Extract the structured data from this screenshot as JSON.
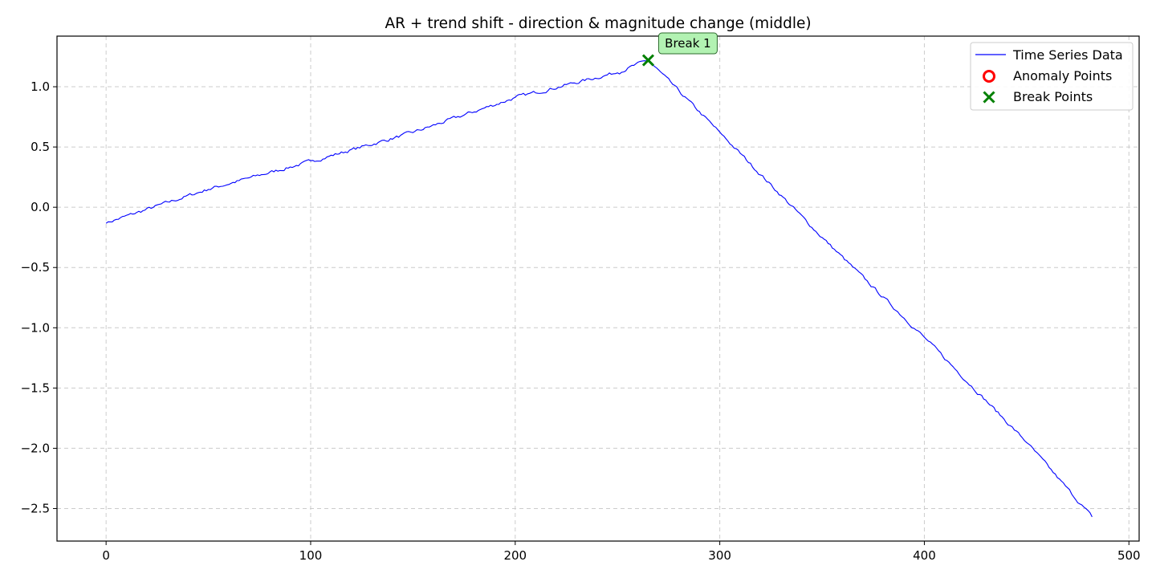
{
  "chart_data": {
    "type": "line",
    "title": "AR + trend shift - direction & magnitude change (middle)",
    "xlabel": "",
    "ylabel": "",
    "xlim": [
      -24,
      505
    ],
    "ylim": [
      -2.77,
      1.42
    ],
    "xticks": [
      0,
      100,
      200,
      300,
      400,
      500
    ],
    "yticks": [
      1.0,
      0.5,
      0.0,
      -0.5,
      -1.0,
      -1.5,
      -2.0,
      -2.5
    ],
    "xtick_labels": [
      "0",
      "100",
      "200",
      "300",
      "400",
      "500"
    ],
    "ytick_labels": [
      "1.0",
      "0.5",
      "0.0",
      "−0.5",
      "−1.0",
      "−1.5",
      "−2.0",
      "−2.5"
    ],
    "grid": true,
    "legend_position": "top-right",
    "series": [
      {
        "name": "Time Series Data",
        "color": "#0000ff",
        "segments": [
          {
            "x_start": 0,
            "x_end": 265,
            "y_start": -0.13,
            "y_end": 1.22
          },
          {
            "x_start": 265,
            "x_end": 482,
            "y_start": 1.22,
            "y_end": -2.57
          }
        ],
        "key_points": [
          {
            "x": 0,
            "y": -0.13
          },
          {
            "x": 50,
            "y": 0.15
          },
          {
            "x": 100,
            "y": 0.38
          },
          {
            "x": 150,
            "y": 0.62
          },
          {
            "x": 200,
            "y": 0.91
          },
          {
            "x": 250,
            "y": 1.12
          },
          {
            "x": 265,
            "y": 1.22
          },
          {
            "x": 300,
            "y": 0.62
          },
          {
            "x": 350,
            "y": -0.25
          },
          {
            "x": 400,
            "y": -1.08
          },
          {
            "x": 450,
            "y": -1.95
          },
          {
            "x": 482,
            "y": -2.57
          }
        ],
        "noise": 0.012
      },
      {
        "name": "Anomaly Points",
        "color": "#ff0000",
        "marker": "circle",
        "points": []
      },
      {
        "name": "Break Points",
        "color": "#008000",
        "marker": "x",
        "points": [
          {
            "x": 265,
            "y": 1.22
          }
        ]
      }
    ],
    "annotations": [
      {
        "text": "Break 1",
        "x": 265,
        "y": 1.22,
        "bg_color": "#b2f2b2",
        "border_color": "#2e6b2e"
      }
    ]
  }
}
